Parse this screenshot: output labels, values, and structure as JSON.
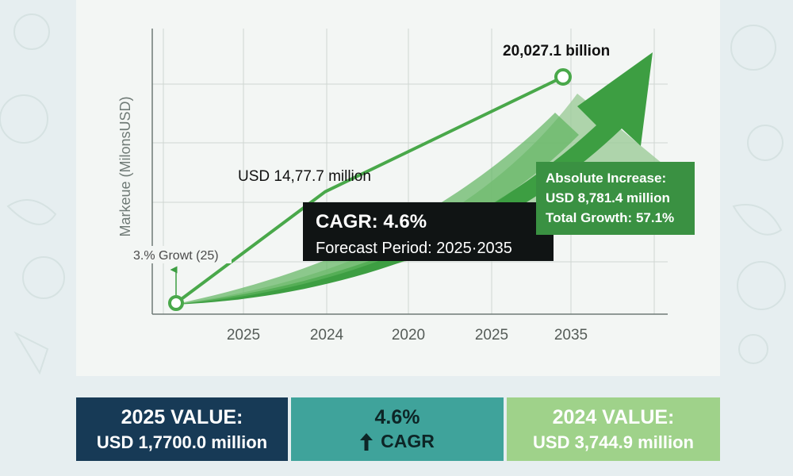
{
  "chart_data": {
    "type": "line",
    "ylabel": "Markeue (MilonsUSD)",
    "x_tick_labels": [
      "2025",
      "2024",
      "2020",
      "2025",
      "2035"
    ],
    "series": [
      {
        "values": [
          0,
          14777.7,
          20027.1
        ]
      }
    ],
    "growth_arrow": {
      "color": "#3d9e42"
    },
    "annotations": {
      "start": "3.% Growt (25)",
      "mid": "USD 14,77.7 million",
      "end": "20,027.1 billion"
    },
    "cagr_box": {
      "title": "CAGR: 4.6%",
      "subtitle": "Forecast Period: 2025·2035"
    },
    "increase_box": {
      "line1": "Absolute Increase:",
      "line2": "USD 8,781.4 million",
      "line3": "Total Growth: 57.1%"
    },
    "grid": true
  },
  "stats": {
    "value_2025": {
      "label": "2025 VALUE:",
      "value": "USD 1,7700.0 million",
      "color": "#173a56"
    },
    "cagr": {
      "label": "4.6%",
      "value": "CAGR",
      "icon": "arrow-up-icon",
      "color": "#3fa39b"
    },
    "value_2024": {
      "label": "2024 VALUE:",
      "value": "USD 3,744.9 million",
      "color": "#9fd28a"
    }
  }
}
